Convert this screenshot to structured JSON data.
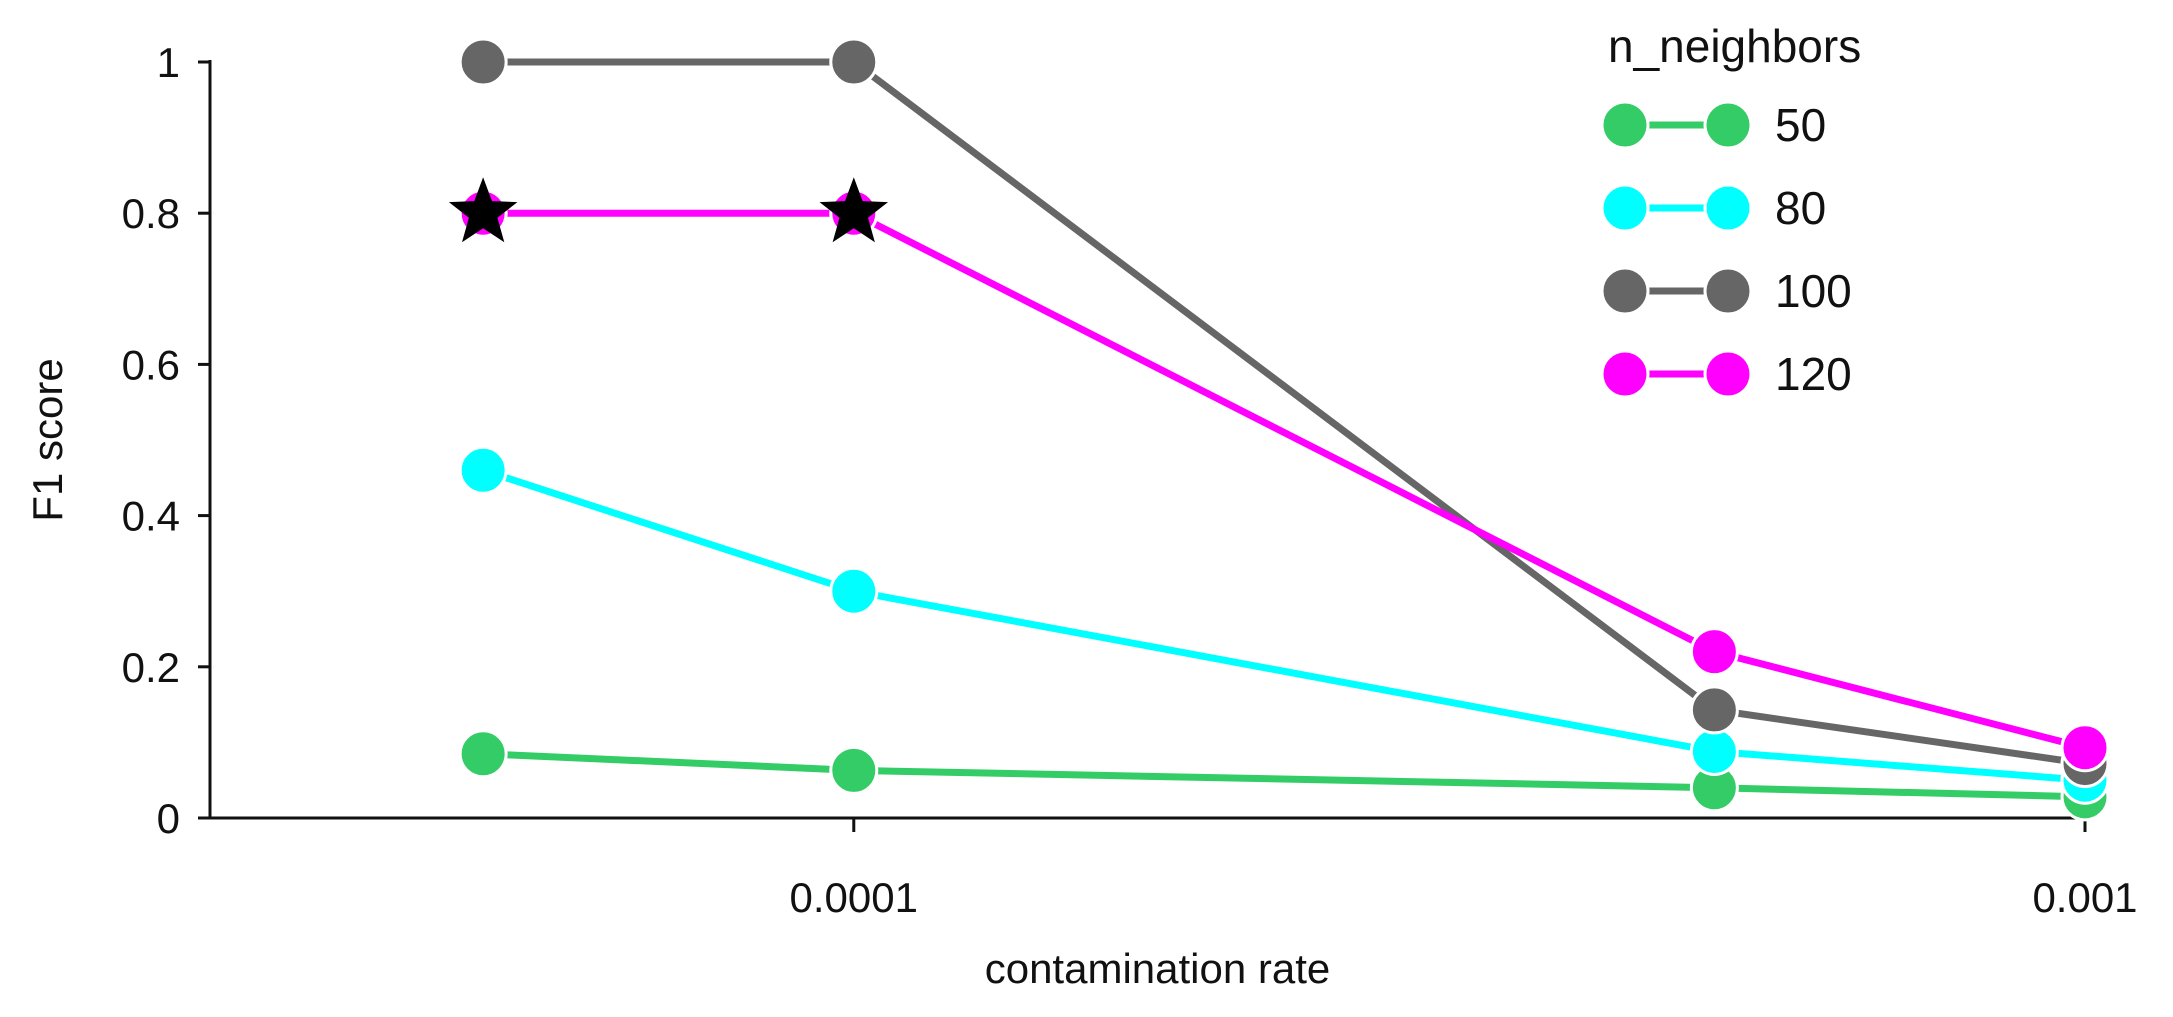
{
  "chart_data": {
    "type": "line",
    "title": "",
    "xlabel": "contamination rate",
    "ylabel": "F1 score",
    "x_scale": "log",
    "xlim": [
      3e-05,
      0.001
    ],
    "ylim": [
      0,
      1
    ],
    "x_ticks": [
      {
        "value": 0.0001,
        "label": "0.0001"
      },
      {
        "value": 0.001,
        "label": "0.001"
      }
    ],
    "y_ticks": [
      {
        "value": 0,
        "label": "0"
      },
      {
        "value": 0.2,
        "label": "0.2"
      },
      {
        "value": 0.4,
        "label": "0.4"
      },
      {
        "value": 0.6,
        "label": "0.6"
      },
      {
        "value": 0.8,
        "label": "0.8"
      },
      {
        "value": 1,
        "label": "1"
      }
    ],
    "x": [
      5e-05,
      0.0001,
      0.0005,
      0.001
    ],
    "grid": false,
    "legend": {
      "title": "n_neighbors",
      "placement": "top-right"
    },
    "series": [
      {
        "name": "50",
        "color": "#33cc66",
        "values": [
          0.085,
          0.063,
          0.04,
          0.028
        ]
      },
      {
        "name": "80",
        "color": "#00ffff",
        "values": [
          0.46,
          0.3,
          0.088,
          0.05
        ]
      },
      {
        "name": "100",
        "color": "#666666",
        "values": [
          1.0,
          1.0,
          0.143,
          0.072
        ]
      },
      {
        "name": "120",
        "color": "#ff00ff",
        "values": [
          0.8,
          0.8,
          0.22,
          0.093
        ]
      }
    ],
    "markers": [
      {
        "series": "120",
        "x": 5e-05,
        "y": 0.8,
        "symbol": "star",
        "color": "#000000"
      },
      {
        "series": "120",
        "x": 0.0001,
        "y": 0.8,
        "symbol": "star",
        "color": "#000000"
      }
    ]
  }
}
